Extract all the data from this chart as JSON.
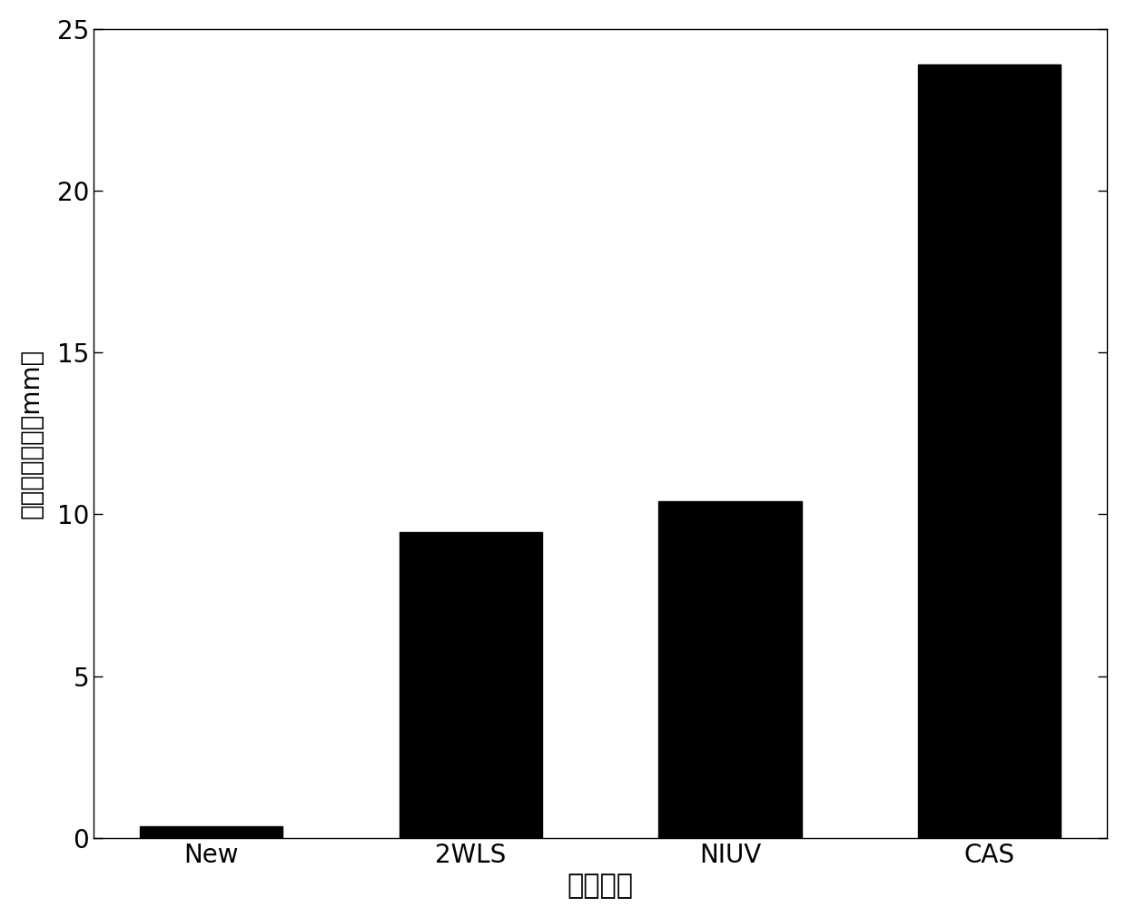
{
  "categories": [
    "New",
    "2WLS",
    "NIUV",
    "CAS"
  ],
  "values": [
    0.35,
    9.45,
    10.4,
    23.9
  ],
  "bar_color": "#000000",
  "xlabel": "定位方法",
  "ylabel": "绝对距离误差（mm）",
  "ylim": [
    0,
    25
  ],
  "yticks": [
    0,
    5,
    10,
    15,
    20,
    25
  ],
  "background_color": "#ffffff",
  "xlabel_fontsize": 22,
  "ylabel_fontsize": 20,
  "tick_fontsize": 20,
  "bar_width": 0.55
}
